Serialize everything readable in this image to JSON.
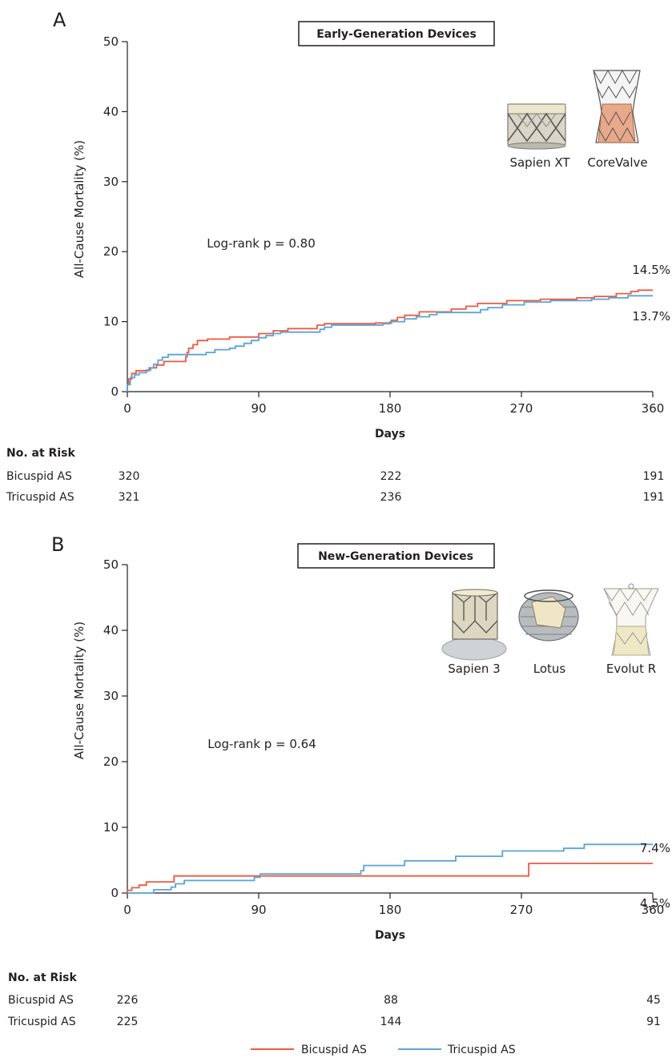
{
  "colors": {
    "bicuspid": "#ef5a40",
    "tricuspid": "#5aa5d9",
    "axis": "#231f20"
  },
  "legend": [
    {
      "label": "Bicuspid AS",
      "color": "#ef5a40"
    },
    {
      "label": "Tricuspid AS",
      "color": "#5aa5d9"
    }
  ],
  "chart_data": [
    {
      "type": "line",
      "panel": "A",
      "title": "Early-Generation Devices",
      "xlabel": "Days",
      "ylabel": "All-Cause Mortality (%)",
      "xlim": [
        0,
        360
      ],
      "ylim": [
        0,
        50
      ],
      "xticks": [
        0,
        90,
        180,
        270,
        360
      ],
      "yticks": [
        0,
        10,
        20,
        30,
        40,
        50
      ],
      "annotation": "Log-rank p = 0.80",
      "devices": [
        "Sapien XT",
        "CoreValve"
      ],
      "series": [
        {
          "name": "Bicuspid AS",
          "color": "#ef5a40",
          "end_label": "14.5%",
          "points": [
            [
              0,
              0
            ],
            [
              0,
              1
            ],
            [
              1,
              1.8
            ],
            [
              3,
              2.6
            ],
            [
              6,
              3.0
            ],
            [
              15,
              3.4
            ],
            [
              20,
              3.8
            ],
            [
              25,
              4.3
            ],
            [
              40,
              5.0
            ],
            [
              41,
              5.6
            ],
            [
              42,
              6.2
            ],
            [
              45,
              6.7
            ],
            [
              48,
              7.3
            ],
            [
              55,
              7.5
            ],
            [
              70,
              7.8
            ],
            [
              90,
              8.3
            ],
            [
              100,
              8.7
            ],
            [
              110,
              9.0
            ],
            [
              130,
              9.5
            ],
            [
              135,
              9.7
            ],
            [
              170,
              9.8
            ],
            [
              181,
              10.2
            ],
            [
              185,
              10.6
            ],
            [
              190,
              10.9
            ],
            [
              200,
              11.4
            ],
            [
              222,
              11.8
            ],
            [
              232,
              12.2
            ],
            [
              240,
              12.6
            ],
            [
              260,
              13.0
            ],
            [
              283,
              13.2
            ],
            [
              308,
              13.4
            ],
            [
              320,
              13.6
            ],
            [
              335,
              14.0
            ],
            [
              345,
              14.3
            ],
            [
              350,
              14.5
            ],
            [
              360,
              14.5
            ]
          ]
        },
        {
          "name": "Tricuspid AS",
          "color": "#5aa5d9",
          "end_label": "13.7%",
          "points": [
            [
              0,
              0
            ],
            [
              0,
              1
            ],
            [
              2,
              2.0
            ],
            [
              5,
              2.4
            ],
            [
              8,
              2.7
            ],
            [
              13,
              3.1
            ],
            [
              16,
              3.4
            ],
            [
              18,
              3.9
            ],
            [
              21,
              4.5
            ],
            [
              24,
              4.9
            ],
            [
              28,
              5.3
            ],
            [
              54,
              5.6
            ],
            [
              60,
              6.0
            ],
            [
              70,
              6.2
            ],
            [
              74,
              6.5
            ],
            [
              80,
              6.9
            ],
            [
              85,
              7.3
            ],
            [
              90,
              7.7
            ],
            [
              95,
              8.0
            ],
            [
              100,
              8.3
            ],
            [
              105,
              8.5
            ],
            [
              132,
              8.9
            ],
            [
              135,
              9.2
            ],
            [
              140,
              9.5
            ],
            [
              175,
              9.7
            ],
            [
              180,
              10.0
            ],
            [
              190,
              10.4
            ],
            [
              198,
              10.7
            ],
            [
              207,
              11.0
            ],
            [
              212,
              11.3
            ],
            [
              242,
              11.7
            ],
            [
              247,
              12.0
            ],
            [
              257,
              12.4
            ],
            [
              272,
              12.8
            ],
            [
              290,
              13.0
            ],
            [
              318,
              13.2
            ],
            [
              330,
              13.4
            ],
            [
              343,
              13.7
            ],
            [
              360,
              13.7
            ]
          ]
        }
      ],
      "risk_table": {
        "heading": "No. at Risk",
        "rows": [
          {
            "label": "Bicuspid AS",
            "values": [
              "320",
              "222",
              "191"
            ]
          },
          {
            "label": "Tricuspid AS",
            "values": [
              "321",
              "236",
              "191"
            ]
          }
        ]
      }
    },
    {
      "type": "line",
      "panel": "B",
      "title": "New-Generation Devices",
      "xlabel": "Days",
      "ylabel": "All-Cause Mortality (%)",
      "xlim": [
        0,
        360
      ],
      "ylim": [
        0,
        50
      ],
      "xticks": [
        0,
        90,
        180,
        270,
        360
      ],
      "yticks": [
        0,
        10,
        20,
        30,
        40,
        50
      ],
      "annotation": "Log-rank p = 0.64",
      "devices": [
        "Sapien 3",
        "Lotus",
        "Evolut R"
      ],
      "series": [
        {
          "name": "Bicuspid AS",
          "color": "#ef5a40",
          "end_label": "4.5%",
          "points": [
            [
              0,
              0
            ],
            [
              0,
              0.4
            ],
            [
              3,
              0.8
            ],
            [
              8,
              1.2
            ],
            [
              13,
              1.7
            ],
            [
              32,
              2.6
            ],
            [
              274,
              2.6
            ],
            [
              275,
              4.5
            ],
            [
              360,
              4.5
            ]
          ]
        },
        {
          "name": "Tricuspid AS",
          "color": "#5aa5d9",
          "end_label": "7.4%",
          "points": [
            [
              0,
              0
            ],
            [
              18,
              0
            ],
            [
              18,
              0.5
            ],
            [
              30,
              0.9
            ],
            [
              33,
              1.4
            ],
            [
              39,
              1.9
            ],
            [
              87,
              2.4
            ],
            [
              91,
              2.9
            ],
            [
              160,
              3.4
            ],
            [
              162,
              4.2
            ],
            [
              190,
              4.9
            ],
            [
              225,
              5.6
            ],
            [
              257,
              6.4
            ],
            [
              299,
              6.8
            ],
            [
              313,
              7.4
            ],
            [
              360,
              7.4
            ]
          ]
        }
      ],
      "risk_table": {
        "heading": "No. at Risk",
        "rows": [
          {
            "label": "Bicuspid AS",
            "values": [
              "226",
              "88",
              "45"
            ]
          },
          {
            "label": "Tricuspid AS",
            "values": [
              "225",
              "144",
              "91"
            ]
          }
        ]
      }
    }
  ]
}
